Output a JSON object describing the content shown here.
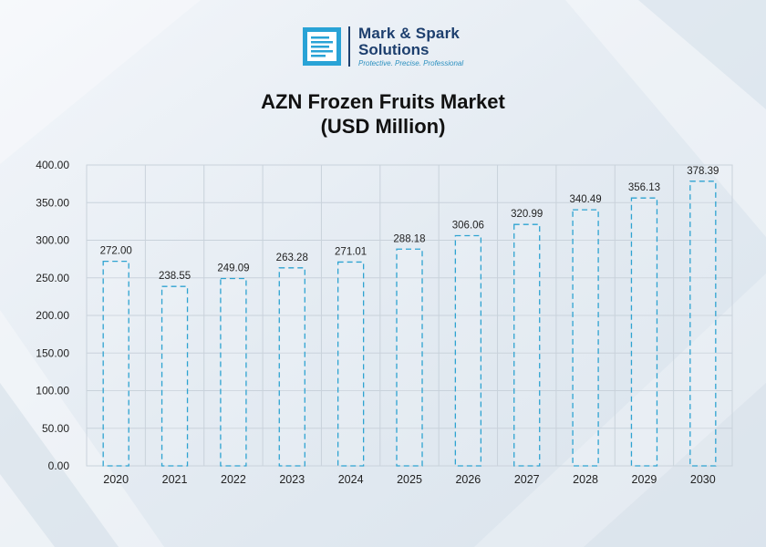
{
  "brand": {
    "name_line1": "Mark & Spark",
    "name_line2": "Solutions",
    "tagline": "Protective. Precise. Professional",
    "accent": "#29a3d6",
    "dark": "#1d3f6e"
  },
  "chart_data": {
    "type": "bar",
    "title_line1": "AZN Frozen Fruits Market",
    "title_line2": "(USD Million)",
    "xlabel": "",
    "ylabel": "",
    "categories": [
      "2020",
      "2021",
      "2022",
      "2023",
      "2024",
      "2025",
      "2026",
      "2027",
      "2028",
      "2029",
      "2030"
    ],
    "values": [
      272.0,
      238.55,
      249.09,
      263.28,
      271.01,
      288.18,
      306.06,
      320.99,
      340.49,
      356.13,
      378.39
    ],
    "value_labels": [
      "272.00",
      "238.55",
      "249.09",
      "263.28",
      "271.01",
      "288.18",
      "306.06",
      "320.99",
      "340.49",
      "356.13",
      "378.39"
    ],
    "y_ticks": [
      "0.00",
      "50.00",
      "100.00",
      "150.00",
      "200.00",
      "250.00",
      "300.00",
      "350.00",
      "400.00"
    ],
    "ylim": [
      0,
      400
    ],
    "grid": true,
    "legend": "none",
    "bar_style": "dashed outline",
    "bar_color": "#2ea3d1"
  }
}
